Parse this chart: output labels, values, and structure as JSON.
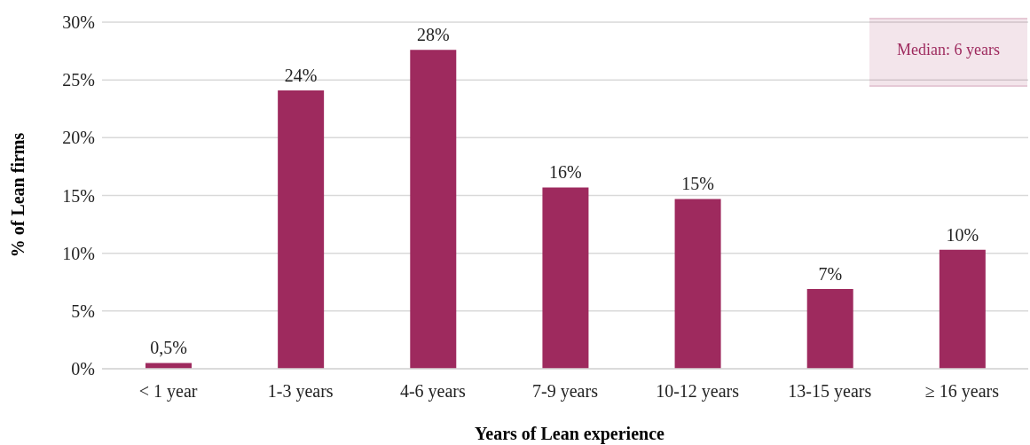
{
  "chart_data": {
    "type": "bar",
    "xlabel": "Years of Lean experience",
    "ylabel": "% of Lean firms",
    "categories": [
      "< 1 year",
      "1-3 years",
      "4-6 years",
      "7-9 years",
      "10-12 years",
      "13-15 years",
      "≥ 16 years"
    ],
    "values": [
      0.5,
      24.1,
      27.6,
      15.7,
      14.7,
      6.9,
      10.3
    ],
    "value_labels": [
      "0,5%",
      "24%",
      "28%",
      "16%",
      "15%",
      "7%",
      "10%"
    ],
    "color": "#9e2a5e",
    "ylim": [
      0,
      30
    ],
    "yticks": [
      {
        "value": 0,
        "label": "0%"
      },
      {
        "value": 5,
        "label": "5%"
      },
      {
        "value": 10,
        "label": "10%"
      },
      {
        "value": 15,
        "label": "15%"
      },
      {
        "value": 20,
        "label": "20%"
      },
      {
        "value": 25,
        "label": "25%"
      },
      {
        "value": 30,
        "label": "30%"
      }
    ],
    "grid": "y",
    "annotations": [
      "Median: 6 years"
    ]
  }
}
